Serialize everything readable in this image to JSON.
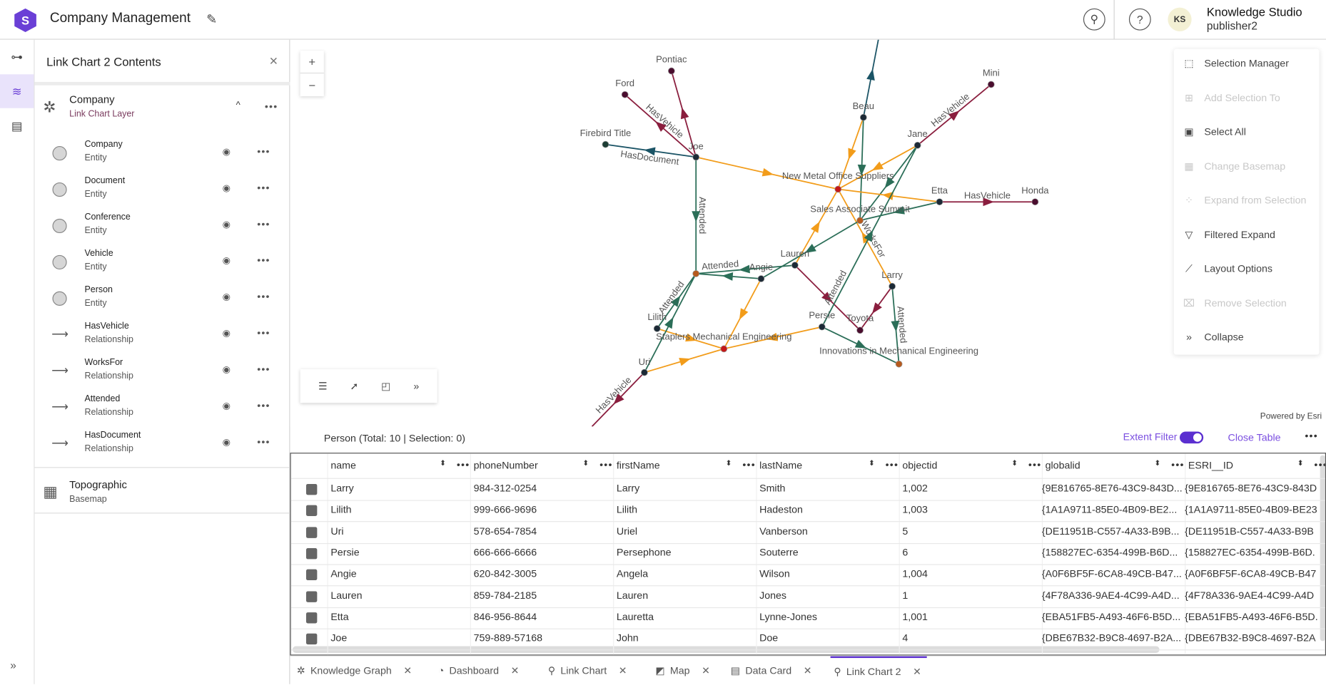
{
  "header": {
    "title": "Company Management",
    "user_initials": "KS",
    "user_name": "Knowledge Studio",
    "user_role": "publisher2"
  },
  "panel": {
    "title": "Link Chart 2 Contents",
    "layer": {
      "name": "Company",
      "type": "Link Chart Layer"
    },
    "items": [
      {
        "name": "Company",
        "type": "Entity",
        "kind": "entity"
      },
      {
        "name": "Document",
        "type": "Entity",
        "kind": "entity"
      },
      {
        "name": "Conference",
        "type": "Entity",
        "kind": "entity"
      },
      {
        "name": "Vehicle",
        "type": "Entity",
        "kind": "entity"
      },
      {
        "name": "Person",
        "type": "Entity",
        "kind": "entity"
      },
      {
        "name": "HasVehicle",
        "type": "Relationship",
        "kind": "rel"
      },
      {
        "name": "WorksFor",
        "type": "Relationship",
        "kind": "rel"
      },
      {
        "name": "Attended",
        "type": "Relationship",
        "kind": "rel"
      },
      {
        "name": "HasDocument",
        "type": "Relationship",
        "kind": "rel"
      }
    ],
    "basemap": {
      "name": "Topographic",
      "type": "Basemap"
    }
  },
  "map": {
    "zoom_in": "+",
    "zoom_out": "−",
    "powered_by": "Powered by Esri",
    "colors": {
      "HasVehicle": "#8a1e3e",
      "WorksFor": "#f29c1a",
      "Attended": "#2b6e58",
      "HasDocument": "#1b5466",
      "person": "#1c2a36",
      "company": "#c41818",
      "conference": "#b65a1e",
      "vehicle": "#4a0d2e",
      "document": "#1d3d34"
    },
    "nodes": [
      {
        "id": "pontiac",
        "label": "Pontiac",
        "kind": "vehicle"
      },
      {
        "id": "ford",
        "label": "Ford",
        "kind": "vehicle"
      },
      {
        "id": "firebird",
        "label": "Firebird Title",
        "kind": "document"
      },
      {
        "id": "joe",
        "label": "Joe",
        "kind": "person"
      },
      {
        "id": "beau",
        "label": "Beau",
        "kind": "person"
      },
      {
        "id": "mini",
        "label": "Mini",
        "kind": "vehicle"
      },
      {
        "id": "jane",
        "label": "Jane",
        "kind": "person"
      },
      {
        "id": "nmos",
        "label": "New Metal Office Suppliers",
        "kind": "company"
      },
      {
        "id": "etta",
        "label": "Etta",
        "kind": "person"
      },
      {
        "id": "honda",
        "label": "Honda",
        "kind": "vehicle"
      },
      {
        "id": "sas",
        "label": "Sales Associate Summit",
        "kind": "conference"
      },
      {
        "id": "lauren",
        "label": "Lauren",
        "kind": "person"
      },
      {
        "id": "angie",
        "label": "Angie",
        "kind": "person"
      },
      {
        "id": "conf1",
        "label": "",
        "kind": "conference"
      },
      {
        "id": "larry",
        "label": "Larry",
        "kind": "person"
      },
      {
        "id": "lilith",
        "label": "Lilith",
        "kind": "person"
      },
      {
        "id": "persie",
        "label": "Persie",
        "kind": "person"
      },
      {
        "id": "toyota",
        "label": "Toyota",
        "kind": "vehicle"
      },
      {
        "id": "staplers",
        "label": "Staplers Mechanical Engineering",
        "kind": "company"
      },
      {
        "id": "innov",
        "label": "Innovations in Mechanical Engineering",
        "kind": "conference"
      },
      {
        "id": "uri",
        "label": "Uri",
        "kind": "person"
      }
    ],
    "edges": [
      {
        "from": "joe",
        "to": "ford",
        "type": "HasVehicle",
        "label": "HasVehicle"
      },
      {
        "from": "joe",
        "to": "pontiac",
        "type": "HasVehicle",
        "label": ""
      },
      {
        "from": "joe",
        "to": "firebird",
        "type": "HasDocument",
        "label": "HasDocument"
      },
      {
        "from": "joe",
        "to": "nmos",
        "type": "WorksFor",
        "label": ""
      },
      {
        "from": "joe",
        "to": "conf1",
        "type": "Attended",
        "label": "Attended"
      },
      {
        "from": "beau",
        "to": "top",
        "type": "HasDocument",
        "label": ""
      },
      {
        "from": "beau",
        "to": "nmos",
        "type": "WorksFor",
        "label": ""
      },
      {
        "from": "beau",
        "to": "sas",
        "type": "Attended",
        "label": ""
      },
      {
        "from": "jane",
        "to": "mini",
        "type": "HasVehicle",
        "label": "HasVehicle"
      },
      {
        "from": "jane",
        "to": "nmos",
        "type": "WorksFor",
        "label": ""
      },
      {
        "from": "jane",
        "to": "sas",
        "type": "Attended",
        "label": ""
      },
      {
        "from": "etta",
        "to": "honda",
        "type": "HasVehicle",
        "label": "HasVehicle"
      },
      {
        "from": "etta",
        "to": "nmos",
        "type": "WorksFor",
        "label": ""
      },
      {
        "from": "etta",
        "to": "sas",
        "type": "Attended",
        "label": ""
      },
      {
        "from": "larry",
        "to": "nmos",
        "type": "WorksFor",
        "label": "WorksFor"
      },
      {
        "from": "lauren",
        "to": "nmos",
        "type": "WorksFor",
        "label": ""
      },
      {
        "from": "lauren",
        "to": "toyota",
        "type": "HasVehicle",
        "label": ""
      },
      {
        "from": "sas",
        "to": "angie",
        "type": "Attended",
        "label": ""
      },
      {
        "from": "angie",
        "to": "conf1",
        "type": "Attended",
        "label": ""
      },
      {
        "from": "lauren",
        "to": "conf1",
        "type": "Attended",
        "label": "Attended"
      },
      {
        "from": "angie",
        "to": "staplers",
        "type": "WorksFor",
        "label": ""
      },
      {
        "from": "larry",
        "to": "toyota",
        "type": "HasVehicle",
        "label": ""
      },
      {
        "from": "larry",
        "to": "innov",
        "type": "Attended",
        "label": "Attended"
      },
      {
        "from": "lilith",
        "to": "conf1",
        "type": "Attended",
        "label": "Attended"
      },
      {
        "from": "lilith",
        "to": "staplers",
        "type": "WorksFor",
        "label": ""
      },
      {
        "from": "uri",
        "to": "conf1",
        "type": "Attended",
        "label": ""
      },
      {
        "from": "uri",
        "to": "staplers",
        "type": "WorksFor",
        "label": ""
      },
      {
        "from": "persie",
        "to": "staplers",
        "type": "WorksFor",
        "label": ""
      },
      {
        "from": "persie",
        "to": "jane",
        "type": "Attended",
        "label": "Attended"
      },
      {
        "from": "persie",
        "to": "innov",
        "type": "Attended",
        "label": ""
      },
      {
        "from": "uri",
        "to": "bottom",
        "type": "HasVehicle",
        "label": "HasVehicle"
      }
    ]
  },
  "menu": [
    {
      "label": "Selection Manager",
      "icon": "selection-manager-icon",
      "glyph": "⬚",
      "enabled": true
    },
    {
      "label": "Add Selection To",
      "icon": "add-selection-icon",
      "glyph": "⊞",
      "enabled": false
    },
    {
      "label": "Select All",
      "icon": "select-all-icon",
      "glyph": "▣",
      "enabled": true
    },
    {
      "label": "Change Basemap",
      "icon": "basemap-icon",
      "glyph": "▦",
      "enabled": false
    },
    {
      "label": "Expand from Selection",
      "icon": "expand-icon",
      "glyph": "⁘",
      "enabled": false
    },
    {
      "label": "Filtered Expand",
      "icon": "filter-icon",
      "glyph": "▽",
      "enabled": true
    },
    {
      "label": "Layout Options",
      "icon": "layout-icon",
      "glyph": "⟋",
      "enabled": true
    },
    {
      "label": "Remove Selection",
      "icon": "remove-selection-icon",
      "glyph": "⌧",
      "enabled": false
    },
    {
      "label": "Collapse",
      "icon": "collapse-icon",
      "glyph": "»",
      "enabled": true
    }
  ],
  "table": {
    "title": "Person (Total: 10 | Selection: 0)",
    "extent_filter": "Extent Filter",
    "extent_filter_on": true,
    "close": "Close Table",
    "columns": [
      "name",
      "phoneNumber",
      "firstName",
      "lastName",
      "objectid",
      "globalid",
      "ESRI__ID"
    ],
    "rows": [
      [
        "Larry",
        "984-312-0254",
        "Larry",
        "Smith",
        "1,002",
        "{9E816765-8E76-43C9-843D...",
        "{9E816765-8E76-43C9-843D"
      ],
      [
        "Lilith",
        "999-666-9696",
        "Lilith",
        "Hadeston",
        "1,003",
        "{1A1A9711-85E0-4B09-BE2...",
        "{1A1A9711-85E0-4B09-BE23"
      ],
      [
        "Uri",
        "578-654-7854",
        "Uriel",
        "Vanberson",
        "5",
        "{DE11951B-C557-4A33-B9B...",
        "{DE11951B-C557-4A33-B9B"
      ],
      [
        "Persie",
        "666-666-6666",
        "Persephone",
        "Souterre",
        "6",
        "{158827EC-6354-499B-B6D...",
        "{158827EC-6354-499B-B6D."
      ],
      [
        "Angie",
        "620-842-3005",
        "Angela",
        "Wilson",
        "1,004",
        "{A0F6BF5F-6CA8-49CB-B47...",
        "{A0F6BF5F-6CA8-49CB-B47"
      ],
      [
        "Lauren",
        "859-784-2185",
        "Lauren",
        "Jones",
        "1",
        "{4F78A336-9AE4-4C99-A4D...",
        "{4F78A336-9AE4-4C99-A4D"
      ],
      [
        "Etta",
        "846-956-8644",
        "Lauretta",
        "Lynne-Jones",
        "1,001",
        "{EBA51FB5-A493-46F6-B5D...",
        "{EBA51FB5-A493-46F6-B5D."
      ],
      [
        "Joe",
        "759-889-57168",
        "John",
        "Doe",
        "4",
        "{DBE67B32-B9C8-4697-B2A...",
        "{DBE67B32-B9C8-4697-B2A"
      ]
    ]
  },
  "tabs": [
    {
      "label": "Knowledge Graph",
      "icon": "knowledge-graph-icon",
      "glyph": "✲"
    },
    {
      "label": "Dashboard",
      "icon": "dashboard-icon",
      "glyph": "◔"
    },
    {
      "label": "Link Chart",
      "icon": "link-chart-icon",
      "glyph": "⚲"
    },
    {
      "label": "Map",
      "icon": "map-icon",
      "glyph": "◩"
    },
    {
      "label": "Data Card",
      "icon": "data-card-icon",
      "glyph": "▤"
    },
    {
      "label": "Link Chart 2",
      "icon": "link-chart-icon",
      "glyph": "⚲",
      "active": true
    }
  ]
}
